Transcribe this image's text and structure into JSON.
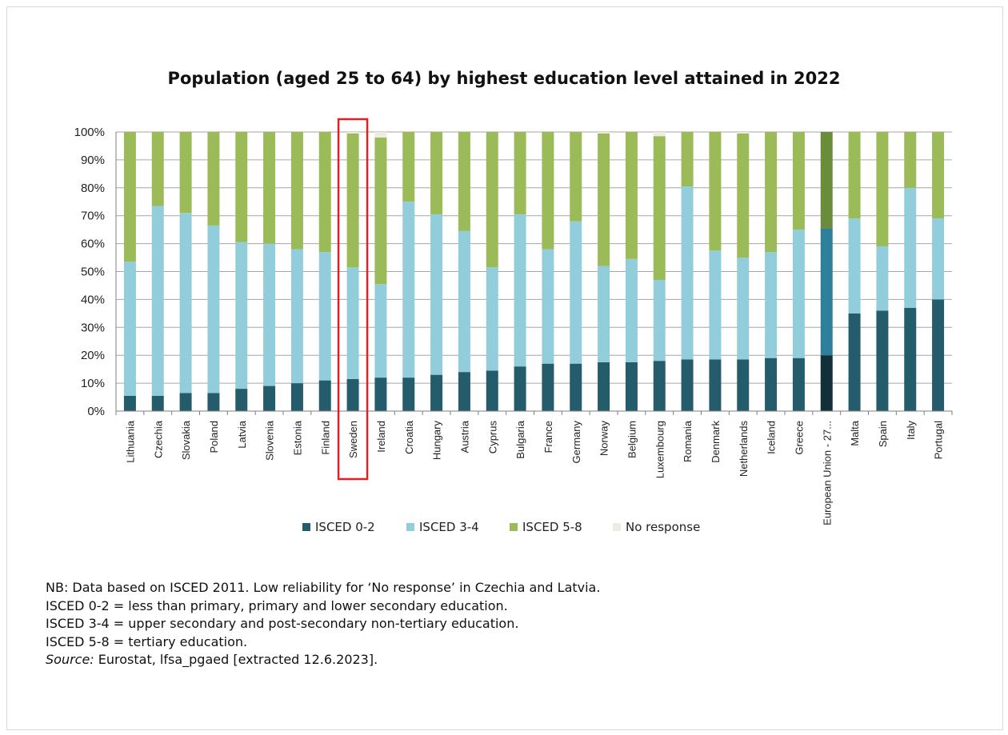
{
  "chart_data": {
    "type": "bar",
    "stacked": true,
    "title": "Population (aged 25 to 64) by highest education level attained in 2022",
    "ylim": [
      0,
      100
    ],
    "y_ticks": [
      "0%",
      "10%",
      "20%",
      "30%",
      "40%",
      "50%",
      "60%",
      "70%",
      "80%",
      "90%",
      "100%"
    ],
    "grid": true,
    "legend_position": "bottom",
    "highlighted_category": "Sweden",
    "categories": [
      "Lithuania",
      "Czechia",
      "Slovakia",
      "Poland",
      "Latvia",
      "Slovenia",
      "Estonia",
      "Finland",
      "Sweden",
      "Ireland",
      "Croatia",
      "Hungary",
      "Austria",
      "Cyprus",
      "Bulgaria",
      "France",
      "Germany",
      "Norway",
      "Belgium",
      "Luxembourg",
      "Romania",
      "Denmark",
      "Netherlands",
      "Iceland",
      "Greece",
      "European Union - 27...",
      "Malta",
      "Spain",
      "Italy",
      "Portugal"
    ],
    "series": [
      {
        "name": "ISCED 0-2",
        "color": "#245c6c",
        "values": [
          5.5,
          5.5,
          6.5,
          6.5,
          8,
          9,
          10,
          11,
          11.5,
          12,
          12,
          13,
          14,
          14.5,
          16,
          17,
          17,
          17.5,
          17.5,
          18,
          18.5,
          18.5,
          18.5,
          19,
          19,
          20,
          35,
          36,
          37,
          40
        ]
      },
      {
        "name": "ISCED 3-4",
        "color": "#92cddc",
        "values": [
          48,
          68,
          64.5,
          60,
          52.5,
          51,
          48,
          46,
          40,
          33.5,
          63,
          57.5,
          50.5,
          37,
          54.5,
          41,
          51,
          34.5,
          37,
          29,
          62,
          39,
          36.5,
          38,
          46,
          45.5,
          34,
          23,
          43,
          29
        ]
      },
      {
        "name": "ISCED 5-8",
        "color": "#9bbb59",
        "values": [
          46.5,
          26.5,
          29,
          33.5,
          39.5,
          40,
          42,
          43,
          48,
          52.5,
          25,
          29.5,
          35.5,
          48.5,
          29.5,
          42,
          32,
          47.5,
          45.5,
          51.5,
          19.5,
          42.5,
          44.5,
          43,
          35,
          34.5,
          31,
          41,
          20,
          31
        ]
      },
      {
        "name": "No response",
        "color": "#eeece1",
        "values": [
          0,
          0,
          0,
          0,
          0,
          0,
          0,
          0,
          0.5,
          2,
          0,
          0,
          0,
          0,
          0,
          0,
          0,
          0.5,
          0,
          1.5,
          0,
          0,
          0.5,
          0,
          0,
          0,
          0,
          0,
          0,
          0
        ]
      }
    ],
    "eu_series_colors": [
      "#11303a",
      "#2e7f9b",
      "#6a8d3c",
      "#eeece1"
    ]
  },
  "notes": {
    "line1": "NB: Data based on ISCED 2011. Low reliability for ‘No response’ in Czechia and Latvia.",
    "line2": "ISCED 0-2 = less than primary, primary and lower secondary education.",
    "line3": "ISCED 3-4 = upper secondary and post-secondary non-tertiary education.",
    "line4": "ISCED 5-8 = tertiary education.",
    "source_label": "Source:",
    "source_text": " Eurostat, lfsa_pgaed [extracted 12.6.2023]."
  }
}
